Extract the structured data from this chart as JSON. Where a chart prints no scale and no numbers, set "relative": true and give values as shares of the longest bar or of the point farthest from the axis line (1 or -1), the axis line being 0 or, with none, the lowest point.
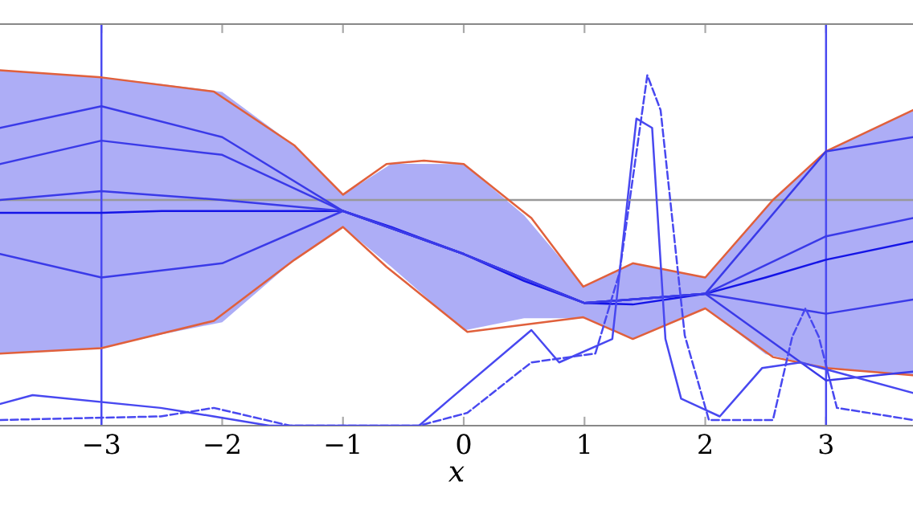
{
  "chart_data": {
    "type": "line",
    "relative": true,
    "xlabel": "x",
    "xlim": [
      -3.84,
      3.72
    ],
    "xticks": [
      {
        "value": -3,
        "label": "−3"
      },
      {
        "value": -2,
        "label": "−2"
      },
      {
        "value": -1,
        "label": "−1"
      },
      0,
      1,
      2,
      3
    ],
    "grid": false,
    "legend": false,
    "marker": "none",
    "ref_lines": [
      {
        "axis": "y",
        "value": 0.635,
        "color": "#999999"
      },
      {
        "axis": "x",
        "value": -3,
        "color": "#4a4af0"
      },
      {
        "axis": "x",
        "value": 3,
        "color": "#4a4af0"
      }
    ],
    "series": [
      {
        "color": "#1414e6",
        "x": [
          -3.84,
          -3,
          -2.5,
          -2,
          -1.4,
          -1,
          -0.6,
          0,
          0.5,
          1,
          1.4,
          2,
          2.5,
          3,
          3.72
        ],
        "values": [
          0.599,
          0.599,
          0.604,
          0.604,
          0.604,
          0.604,
          0.559,
          0.483,
          0.407,
          0.345,
          0.341,
          0.371,
          0.417,
          0.467,
          0.518
        ],
        "lower": [
          0.203,
          0.218,
          0.257,
          0.291,
          0.467,
          0.559,
          0.447,
          0.268,
          0.302,
          0.302,
          0.244,
          0.33,
          0.201,
          0.162,
          0.142
        ],
        "upper": [
          1.0,
          0.98,
          0.961,
          0.939,
          0.788,
          0.65,
          0.737,
          0.736,
          0.592,
          0.391,
          0.457,
          0.417,
          0.615,
          0.772,
          0.888
        ]
      },
      {
        "color": "#e0603c",
        "x": [
          -3.84,
          -3,
          -2.07,
          -1.4,
          -1,
          -0.64,
          -0.33,
          0,
          0.56,
          0.99,
          1.4,
          2,
          2.56,
          3,
          3.72
        ],
        "values": [
          1.0,
          0.98,
          0.94,
          0.788,
          0.65,
          0.736,
          0.746,
          0.736,
          0.584,
          0.391,
          0.457,
          0.417,
          0.635,
          0.772,
          0.888
        ]
      },
      {
        "color": "#e0603c",
        "x": [
          -3.84,
          -3,
          -2.07,
          -1.4,
          -1,
          -0.64,
          0.03,
          0.99,
          1.4,
          2,
          2.56,
          3,
          3.72
        ],
        "values": [
          0.203,
          0.218,
          0.295,
          0.467,
          0.559,
          0.447,
          0.264,
          0.305,
          0.244,
          0.33,
          0.193,
          0.162,
          0.142
        ]
      },
      {
        "color": "#3a3ae8",
        "x": [
          -3.84,
          -3,
          -2,
          -1,
          0,
          1,
          2,
          3,
          3.72
        ],
        "values": [
          0.838,
          0.899,
          0.812,
          0.604,
          0.483,
          0.345,
          0.371,
          0.772,
          0.812
        ]
      },
      {
        "color": "#3a3ae8",
        "x": [
          -3.84,
          -3,
          -2,
          -1,
          0,
          1,
          2,
          3,
          3.72
        ],
        "values": [
          0.483,
          0.417,
          0.457,
          0.604,
          0.483,
          0.345,
          0.371,
          0.127,
          0.152
        ]
      },
      {
        "color": "#3a3ae8",
        "x": [
          -3.84,
          -3,
          -2,
          -1,
          0,
          1,
          2,
          3,
          3.72
        ],
        "values": [
          0.736,
          0.802,
          0.762,
          0.604,
          0.483,
          0.345,
          0.371,
          0.533,
          0.584
        ]
      },
      {
        "color": "#3a3ae8",
        "x": [
          -3.84,
          -3,
          -2,
          -1,
          0,
          1,
          2,
          3,
          3.72
        ],
        "values": [
          0.635,
          0.66,
          0.635,
          0.604,
          0.483,
          0.345,
          0.371,
          0.315,
          0.355
        ]
      },
      {
        "color": "#4848f0",
        "x": [
          -3.84,
          -3.57,
          -2.51,
          -2.07,
          -1.61,
          -0.37,
          -0.11,
          0.56,
          0.79,
          1.23,
          1.43,
          1.56,
          1.67,
          1.8,
          2.12,
          2.47,
          2.79,
          3.72
        ],
        "values": [
          0.061,
          0.086,
          0.05,
          0.026,
          0,
          0,
          0.076,
          0.269,
          0.178,
          0.244,
          0.864,
          0.838,
          0.244,
          0.076,
          0.026,
          0.162,
          0.178,
          0.092
        ]
      },
      {
        "color": "#4848f0",
        "line_style": "dashed",
        "x": [
          -3.84,
          -2.51,
          -2.07,
          -1.44,
          -0.37,
          0.03,
          0.56,
          1.09,
          1.29,
          1.52,
          1.63,
          1.83,
          2.03,
          2.56,
          2.72,
          2.83,
          2.94,
          3.09,
          3.72
        ],
        "values": [
          0.016,
          0.026,
          0.05,
          0,
          0,
          0.036,
          0.178,
          0.203,
          0.431,
          0.986,
          0.888,
          0.254,
          0.016,
          0.016,
          0.25,
          0.33,
          0.25,
          0.05,
          0.016
        ]
      }
    ]
  }
}
